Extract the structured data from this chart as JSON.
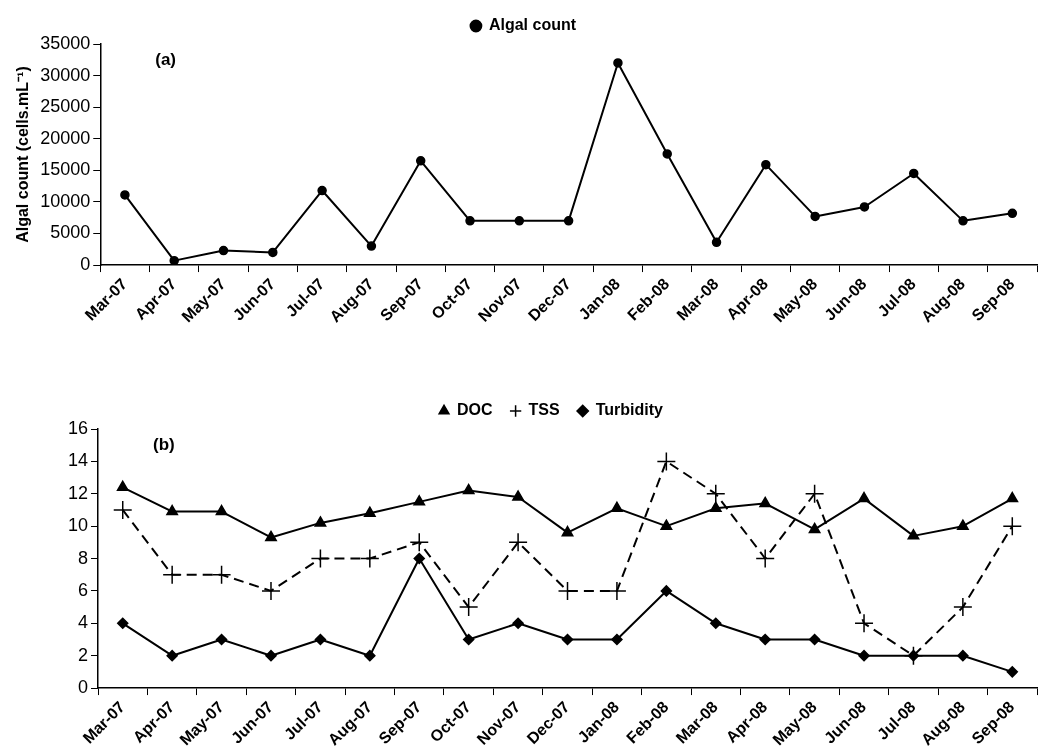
{
  "chart_data": [
    {
      "type": "line",
      "annotations": [
        "(a)"
      ],
      "ylabel": "Algal count (cells.mL⁻¹)",
      "categories": [
        "Mar-07",
        "Apr-07",
        "May-07",
        "Jun-07",
        "Jul-07",
        "Aug-07",
        "Sep-07",
        "Oct-07",
        "Nov-07",
        "Dec-07",
        "Jan-08",
        "Feb-08",
        "Mar-08",
        "Apr-08",
        "May-08",
        "Jun-08",
        "Jul-08",
        "Aug-08",
        "Sep-08"
      ],
      "series": [
        {
          "name": "Algal count",
          "color": "#000000",
          "marker": "circle",
          "line_style": "solid",
          "values": [
            11100,
            700,
            2300,
            2000,
            11800,
            3000,
            16500,
            7000,
            7000,
            7000,
            32000,
            17600,
            3600,
            15900,
            7700,
            9200,
            14500,
            7000,
            8200
          ]
        }
      ],
      "ylim": [
        0,
        35000
      ],
      "yticks": [
        0,
        5000,
        10000,
        15000,
        20000,
        25000,
        30000,
        35000
      ],
      "grid": false,
      "legend": "top"
    },
    {
      "type": "line",
      "annotations": [
        "(b)"
      ],
      "categories": [
        "Mar-07",
        "Apr-07",
        "May-07",
        "Jun-07",
        "Jul-07",
        "Aug-07",
        "Sep-07",
        "Oct-07",
        "Nov-07",
        "Dec-07",
        "Jan-08",
        "Feb-08",
        "Mar-08",
        "Apr-08",
        "May-08",
        "Jun-08",
        "Jul-08",
        "Aug-08",
        "Sep-08"
      ],
      "series": [
        {
          "name": "Turbidity",
          "color": "#000000",
          "marker": "diamond",
          "line_style": "solid",
          "values": [
            4,
            2,
            3,
            2,
            3,
            2,
            8,
            3,
            4,
            3,
            3,
            6,
            4,
            3,
            3,
            2,
            2,
            2,
            1
          ]
        },
        {
          "name": "TSS",
          "color": "#000000",
          "marker": "cross",
          "line_style": "dashed",
          "values": [
            11,
            7,
            7,
            6,
            8,
            8,
            9,
            5,
            9,
            6,
            6,
            14,
            12,
            8,
            12,
            4,
            2,
            5,
            10
          ]
        },
        {
          "name": "DOC",
          "color": "#000000",
          "marker": "triangle",
          "line_style": "solid",
          "values": [
            12.4,
            10.9,
            10.9,
            9.3,
            10.2,
            10.8,
            11.5,
            12.2,
            11.8,
            9.6,
            11.1,
            10.0,
            11.1,
            11.4,
            9.8,
            11.7,
            9.4,
            10.0,
            11.7
          ]
        }
      ],
      "ylim": [
        0,
        16
      ],
      "yticks": [
        0,
        2,
        4,
        6,
        8,
        10,
        12,
        14,
        16
      ],
      "grid": false,
      "legend": "top"
    }
  ]
}
